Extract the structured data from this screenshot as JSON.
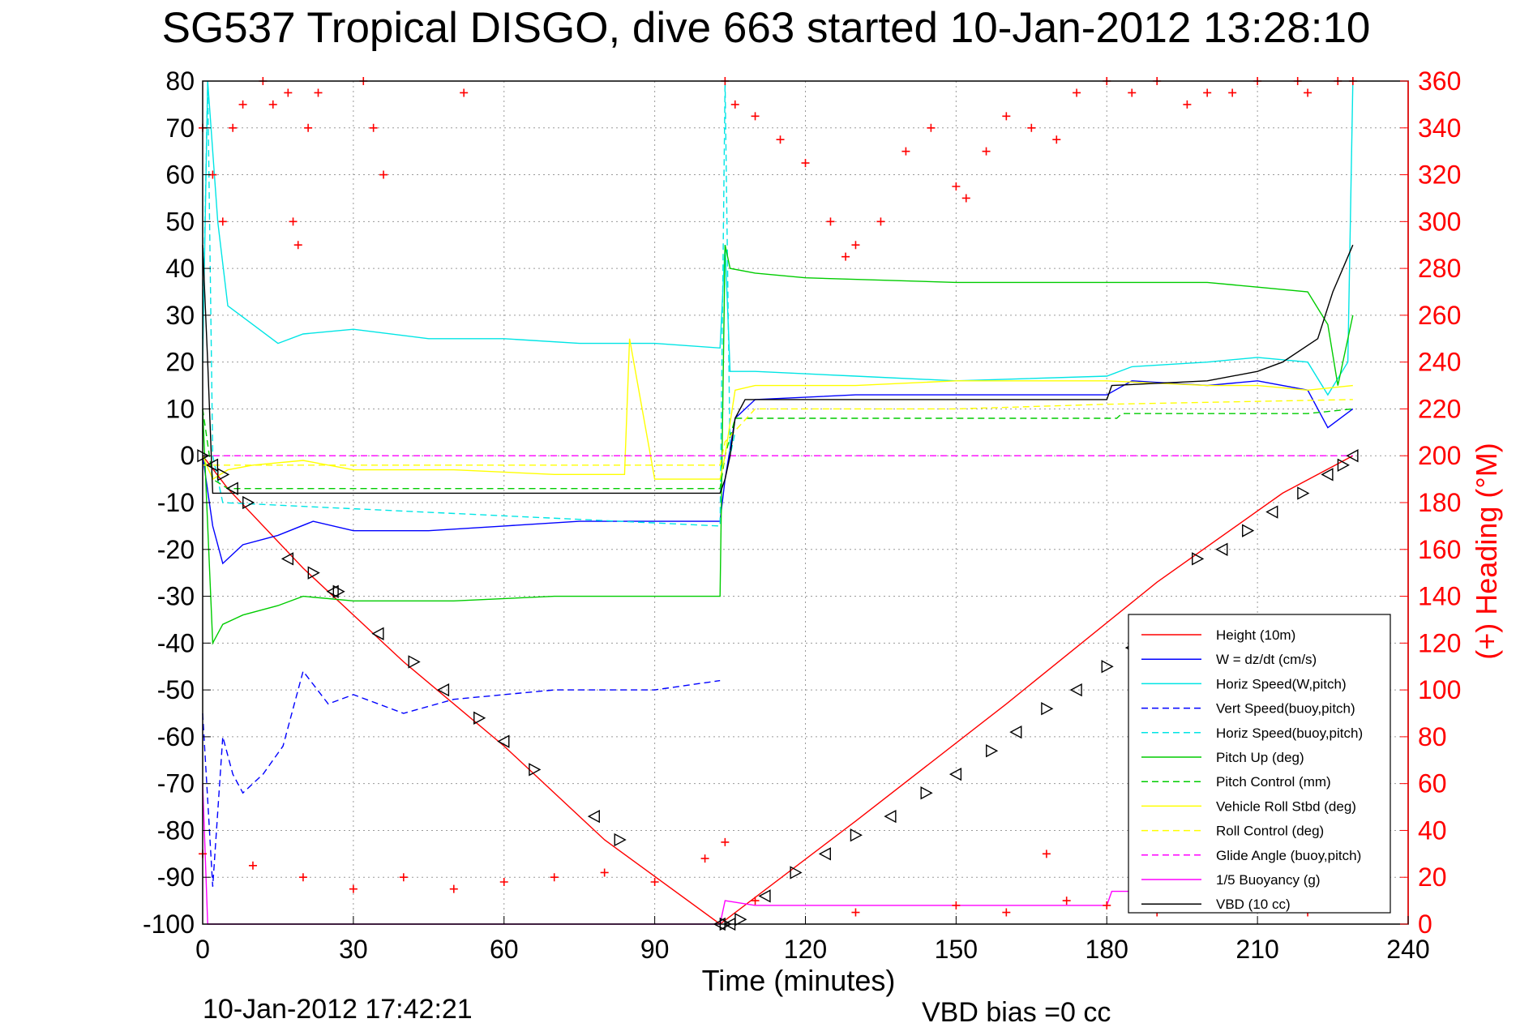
{
  "footer": {
    "timestamp": "10-Jan-2012 17:42:21",
    "vbd_bias": "VBD bias =0 cc"
  },
  "chart_data": {
    "type": "line",
    "title": "SG537 Tropical DISGO, dive 663 started 10-Jan-2012 13:28:10",
    "xlabel": "Time (minutes)",
    "ylabel": "",
    "y2label": "(+) Heading (°M)",
    "xlim": [
      0,
      240
    ],
    "ylim": [
      -100,
      80
    ],
    "y2lim": [
      0,
      360
    ],
    "xticks": [
      "0",
      "30",
      "60",
      "90",
      "120",
      "150",
      "180",
      "210",
      "240"
    ],
    "yticks": [
      "80",
      "70",
      "60",
      "50",
      "40",
      "30",
      "20",
      "10",
      "0",
      "-10",
      "-20",
      "-30",
      "-40",
      "-50",
      "-60",
      "-70",
      "-80",
      "-90",
      "-100"
    ],
    "y2ticks": [
      "360",
      "340",
      "320",
      "300",
      "280",
      "260",
      "240",
      "220",
      "200",
      "180",
      "160",
      "140",
      "120",
      "100",
      "80",
      "60",
      "40",
      "20",
      "0"
    ],
    "grid": true,
    "legend_position": "bottom-right",
    "series": [
      {
        "name": "Height (10m)",
        "color": "#ff0000",
        "style": "solid",
        "x": [
          0,
          5,
          20,
          40,
          60,
          80,
          103,
          130,
          160,
          190,
          215,
          229
        ],
        "y": [
          0,
          -7,
          -24,
          -44,
          -62,
          -82,
          -100,
          -78,
          -53,
          -27,
          -8,
          0
        ]
      },
      {
        "name": "W = dz/dt (cm/s)",
        "color": "#0000ff",
        "style": "solid",
        "x": [
          0,
          2,
          4,
          8,
          15,
          22,
          30,
          45,
          60,
          75,
          90,
          103,
          104,
          106,
          110,
          130,
          150,
          180,
          185,
          200,
          210,
          220,
          224,
          229
        ],
        "y": [
          0,
          -15,
          -23,
          -19,
          -17,
          -14,
          -16,
          -16,
          -15,
          -14,
          -14,
          -14,
          -5,
          8,
          12,
          13,
          13,
          13,
          16,
          15,
          16,
          14,
          6,
          10
        ]
      },
      {
        "name": "Horiz Speed(W,pitch)",
        "color": "#00e5e5",
        "style": "solid",
        "x": [
          0,
          1,
          3,
          5,
          10,
          15,
          20,
          30,
          45,
          60,
          75,
          90,
          103,
          104,
          105,
          110,
          130,
          150,
          180,
          185,
          200,
          210,
          220,
          224,
          228,
          229
        ],
        "y": [
          20,
          80,
          50,
          32,
          28,
          24,
          26,
          27,
          25,
          25,
          24,
          24,
          23,
          45,
          18,
          18,
          17,
          16,
          17,
          19,
          20,
          21,
          20,
          13,
          20,
          80
        ]
      },
      {
        "name": "Vert Speed(buoy,pitch)",
        "color": "#0000ff",
        "style": "dashed",
        "x": [
          0,
          2,
          4,
          6,
          8,
          12,
          16,
          20,
          25,
          30,
          40,
          50,
          60,
          70,
          80,
          90,
          103
        ],
        "y": [
          -55,
          -92,
          -60,
          -68,
          -72,
          -68,
          -62,
          -46,
          -53,
          -51,
          -55,
          -52,
          -51,
          -50,
          -50,
          -50,
          -48
        ]
      },
      {
        "name": "Horiz Speed(buoy,pitch)",
        "color": "#00e5e5",
        "style": "dashed",
        "x": [
          0,
          1,
          2,
          4,
          103,
          104,
          105,
          106
        ],
        "y": [
          25,
          80,
          0,
          -10,
          -15,
          80,
          0,
          5
        ]
      },
      {
        "name": "Pitch Up (deg)",
        "color": "#00cc00",
        "style": "solid",
        "x": [
          0,
          2,
          4,
          8,
          15,
          20,
          30,
          50,
          70,
          90,
          103,
          104,
          105,
          110,
          120,
          150,
          180,
          200,
          210,
          220,
          224,
          226,
          229
        ],
        "y": [
          10,
          -40,
          -36,
          -34,
          -32,
          -30,
          -31,
          -31,
          -30,
          -30,
          -30,
          45,
          40,
          39,
          38,
          37,
          37,
          37,
          36,
          35,
          28,
          15,
          30
        ]
      },
      {
        "name": "Pitch Control (mm)",
        "color": "#00cc00",
        "style": "dashed",
        "x": [
          0,
          2,
          5,
          10,
          50,
          100,
          103,
          104,
          106,
          110,
          150,
          182,
          183,
          220,
          229
        ],
        "y": [
          10,
          -5,
          -7,
          -7,
          -7,
          -7,
          -7,
          0,
          8,
          8,
          8,
          8,
          9,
          9,
          10
        ]
      },
      {
        "name": "Vehicle Roll Stbd (deg)",
        "color": "#ffff00",
        "style": "solid",
        "x": [
          0,
          2,
          5,
          10,
          20,
          30,
          50,
          70,
          84,
          85,
          90,
          103,
          104,
          106,
          110,
          130,
          150,
          180,
          200,
          210,
          220,
          229
        ],
        "y": [
          0,
          -5,
          -3,
          -2,
          -1,
          -3,
          -3,
          -4,
          -4,
          25,
          -5,
          -5,
          0,
          14,
          15,
          15,
          16,
          16,
          15,
          15,
          14,
          15
        ]
      },
      {
        "name": "Roll Control (deg)",
        "color": "#ffff00",
        "style": "dashed",
        "x": [
          0,
          103,
          104,
          110,
          150,
          180,
          229
        ],
        "y": [
          -2,
          -2,
          3,
          10,
          10,
          11,
          12
        ]
      },
      {
        "name": "Glide Angle (buoy,pitch)",
        "color": "#ff00ff",
        "style": "dashed",
        "x": [
          0,
          2,
          103,
          104,
          229
        ],
        "y": [
          0,
          0,
          0,
          0,
          0
        ]
      },
      {
        "name": "1/5 Buoyancy (g)",
        "color": "#ff00ff",
        "style": "solid",
        "x": [
          0,
          1,
          103,
          104,
          110,
          150,
          180,
          181,
          229
        ],
        "y": [
          -70,
          -100,
          -100,
          -95,
          -96,
          -96,
          -96,
          -93,
          -93
        ]
      },
      {
        "name": "VBD (10 cc)",
        "color": "#000000",
        "style": "solid",
        "x": [
          0,
          1,
          2,
          103,
          104,
          105,
          106,
          108,
          180,
          181,
          200,
          210,
          215,
          222,
          225,
          227,
          229
        ],
        "y": [
          45,
          20,
          -8,
          -8,
          -5,
          0,
          8,
          12,
          12,
          15,
          16,
          18,
          20,
          25,
          35,
          40,
          45
        ]
      },
      {
        "name": "Heading",
        "axis": "right",
        "color": "#ff0000",
        "marker": "+",
        "x": [
          0,
          2,
          4,
          6,
          8,
          12,
          14,
          17,
          18,
          19,
          21,
          23,
          32,
          34,
          36,
          52,
          104,
          106,
          110,
          115,
          120,
          125,
          128,
          130,
          135,
          140,
          145,
          150,
          152,
          156,
          160,
          165,
          170,
          174,
          180,
          185,
          190,
          196,
          200,
          205,
          210,
          218,
          220,
          226,
          229,
          0,
          10,
          20,
          30,
          40,
          50,
          60,
          70,
          80,
          90,
          100,
          104,
          110,
          130,
          150,
          160,
          168,
          172,
          180,
          190,
          200,
          210,
          220
        ],
        "y": [
          340,
          320,
          300,
          340,
          350,
          360,
          350,
          355,
          300,
          290,
          340,
          355,
          360,
          340,
          320,
          355,
          360,
          350,
          345,
          335,
          325,
          300,
          285,
          290,
          300,
          330,
          340,
          315,
          310,
          330,
          345,
          340,
          335,
          355,
          360,
          355,
          360,
          350,
          355,
          355,
          360,
          360,
          355,
          360,
          360,
          30,
          25,
          20,
          15,
          20,
          15,
          18,
          20,
          22,
          18,
          28,
          35,
          10,
          5,
          8,
          5,
          30,
          10,
          8,
          5,
          10,
          8,
          5
        ]
      }
    ],
    "markers": {
      "color": "#000000",
      "shape": "triangle",
      "x": [
        0,
        2,
        4,
        6,
        9,
        17,
        22,
        26,
        27,
        35,
        42,
        48,
        55,
        60,
        66,
        78,
        83,
        103,
        104,
        105,
        107,
        112,
        118,
        124,
        130,
        137,
        144,
        150,
        157,
        162,
        168,
        174,
        180,
        185,
        198,
        203,
        208,
        213,
        219,
        224,
        227,
        229
      ],
      "y": [
        0,
        -2,
        -4,
        -7,
        -10,
        -22,
        -25,
        -29,
        -29,
        -38,
        -44,
        -50,
        -56,
        -61,
        -67,
        -77,
        -82,
        -100,
        -100,
        -100,
        -99,
        -94,
        -89,
        -85,
        -81,
        -77,
        -72,
        -68,
        -63,
        -59,
        -54,
        -50,
        -45,
        -41,
        -22,
        -20,
        -16,
        -12,
        -8,
        -4,
        -2,
        0
      ]
    }
  }
}
